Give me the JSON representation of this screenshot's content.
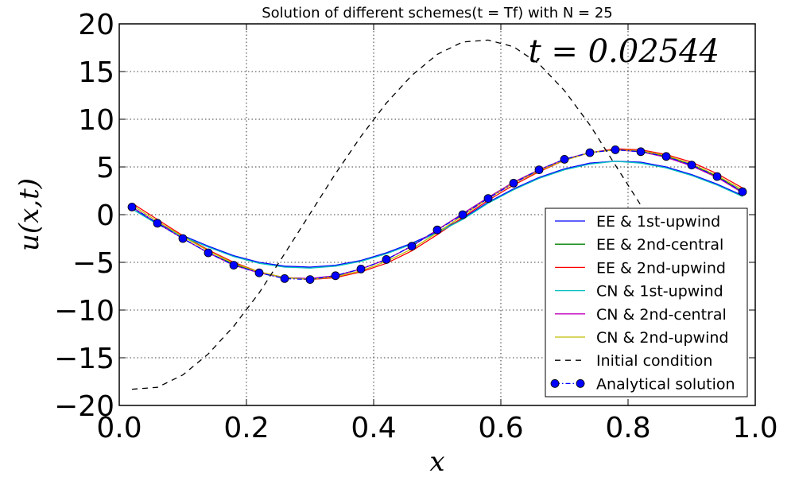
{
  "chart_data": {
    "type": "line",
    "title": "Solution of different schemes(t = Tf) with N = 25",
    "xlabel": "x",
    "ylabel": "u(x,t)",
    "annotation": "t = 0.02544",
    "xlim": [
      0.0,
      1.0
    ],
    "ylim": [
      -20,
      20
    ],
    "xticks": [
      0.0,
      0.2,
      0.4,
      0.6,
      0.8,
      1.0
    ],
    "xtick_labels": [
      "0.0",
      "0.2",
      "0.4",
      "0.6",
      "0.8",
      "1.0"
    ],
    "yticks": [
      -20,
      -15,
      -10,
      -5,
      0,
      5,
      10,
      15,
      20
    ],
    "ytick_labels": [
      "−20",
      "−15",
      "−10",
      "−5",
      "0",
      "5",
      "10",
      "15",
      "20"
    ],
    "grid": true,
    "legend_position": "bottom-right",
    "x": [
      0.02,
      0.06,
      0.1,
      0.14,
      0.18,
      0.22,
      0.26,
      0.3,
      0.34,
      0.38,
      0.42,
      0.46,
      0.5,
      0.54,
      0.58,
      0.62,
      0.66,
      0.7,
      0.74,
      0.78,
      0.82,
      0.86,
      0.9,
      0.94,
      0.98
    ],
    "series": [
      {
        "name": "EE & 1st-upwind",
        "color": "#0000ff",
        "style": "solid",
        "values": [
          0.6,
          -0.9,
          -2.2,
          -3.3,
          -4.3,
          -5.0,
          -5.4,
          -5.5,
          -5.3,
          -4.8,
          -4.0,
          -3.0,
          -1.8,
          -0.4,
          1.3,
          2.7,
          3.9,
          4.8,
          5.4,
          5.6,
          5.5,
          5.0,
          4.2,
          3.2,
          2.0
        ]
      },
      {
        "name": "EE & 2nd-central",
        "color": "#008000",
        "style": "solid",
        "values": [
          0.8,
          -0.9,
          -2.5,
          -4.0,
          -5.2,
          -6.1,
          -6.6,
          -6.7,
          -6.4,
          -5.7,
          -4.7,
          -3.3,
          -1.6,
          0.1,
          1.8,
          3.4,
          4.7,
          5.8,
          6.5,
          6.8,
          6.6,
          6.1,
          5.2,
          4.0,
          2.4
        ]
      },
      {
        "name": "EE & 2nd-upwind",
        "color": "#ff0000",
        "style": "solid",
        "values": [
          1.2,
          -0.5,
          -2.2,
          -3.7,
          -5.0,
          -6.0,
          -6.6,
          -6.8,
          -6.6,
          -6.0,
          -5.1,
          -3.8,
          -2.1,
          -0.3,
          1.5,
          3.1,
          4.5,
          5.7,
          6.5,
          6.9,
          6.8,
          6.3,
          5.5,
          4.3,
          2.8
        ]
      },
      {
        "name": "CN & 1st-upwind",
        "color": "#00bfbf",
        "style": "solid",
        "values": [
          0.6,
          -1.0,
          -2.3,
          -3.4,
          -4.4,
          -5.1,
          -5.5,
          -5.6,
          -5.4,
          -4.9,
          -4.1,
          -3.1,
          -1.9,
          -0.5,
          1.2,
          2.6,
          3.8,
          4.7,
          5.3,
          5.6,
          5.4,
          4.9,
          4.1,
          3.1,
          1.9
        ]
      },
      {
        "name": "CN & 2nd-central",
        "color": "#bf00bf",
        "style": "solid",
        "values": [
          0.8,
          -0.9,
          -2.5,
          -4.0,
          -5.3,
          -6.1,
          -6.6,
          -6.7,
          -6.4,
          -5.7,
          -4.7,
          -3.3,
          -1.6,
          0.1,
          1.8,
          3.4,
          4.7,
          5.8,
          6.5,
          6.8,
          6.6,
          6.0,
          5.1,
          3.9,
          2.3
        ]
      },
      {
        "name": "CN & 2nd-upwind",
        "color": "#bfbf00",
        "style": "solid",
        "values": [
          1.0,
          -0.7,
          -2.3,
          -3.8,
          -5.1,
          -6.0,
          -6.6,
          -6.8,
          -6.5,
          -5.9,
          -4.9,
          -3.6,
          -1.9,
          -0.1,
          1.7,
          3.3,
          4.6,
          5.7,
          6.5,
          6.8,
          6.7,
          6.2,
          5.3,
          4.1,
          2.6
        ]
      },
      {
        "name": "Initial condition",
        "color": "#000000",
        "style": "dashed",
        "values": [
          -18.3,
          -18.1,
          -16.8,
          -14.6,
          -11.7,
          -8.2,
          -4.1,
          0.1,
          4.3,
          8.2,
          11.7,
          14.6,
          16.8,
          18.1,
          18.3,
          17.6,
          15.8,
          13.0,
          9.4,
          5.2,
          1.0,
          -3.3,
          -7.5,
          -11.4,
          -14.8
        ]
      },
      {
        "name": "Analytical solution",
        "color": "#0000ff",
        "style": "dashdot-marker",
        "values": [
          0.8,
          -0.9,
          -2.5,
          -4.0,
          -5.3,
          -6.1,
          -6.7,
          -6.8,
          -6.4,
          -5.7,
          -4.7,
          -3.3,
          -1.6,
          0.0,
          1.7,
          3.3,
          4.7,
          5.8,
          6.5,
          6.8,
          6.6,
          6.1,
          5.2,
          4.0,
          2.4
        ]
      }
    ]
  }
}
